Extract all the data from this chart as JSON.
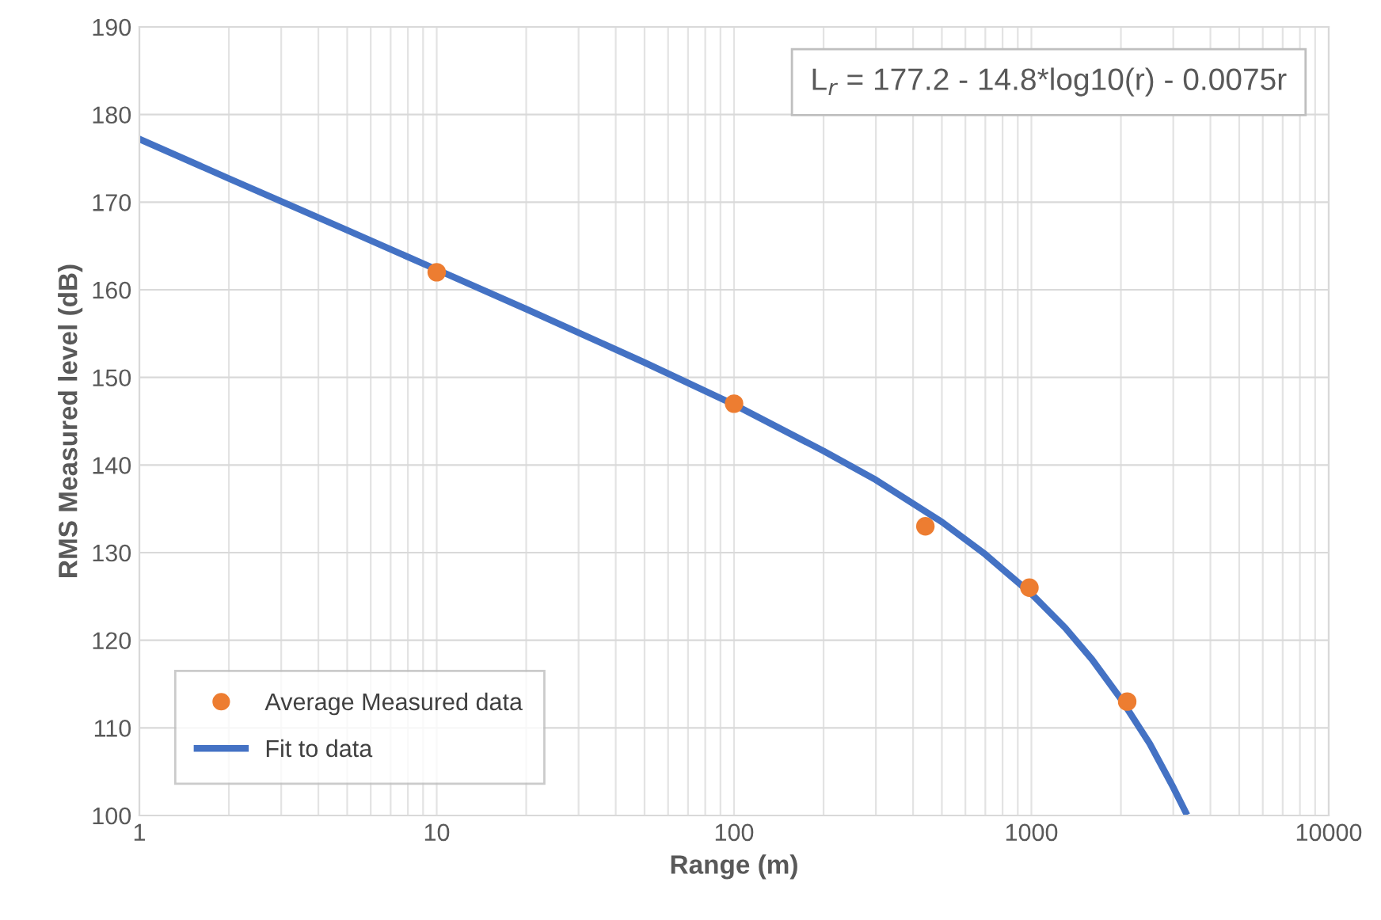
{
  "chart_data": {
    "type": "scatter",
    "xlabel": "Range (m)",
    "ylabel": "RMS Measured level (dB)",
    "log": "x",
    "grid": true,
    "legend": "bottom left",
    "xlim": [
      1,
      10000
    ],
    "xticks": [
      1,
      10,
      100,
      1000,
      10000
    ],
    "ylim": [
      100,
      190
    ],
    "yticks": [
      100,
      110,
      120,
      130,
      140,
      150,
      160,
      170,
      180,
      190
    ],
    "annotations": [
      "L$_{r}$ = 177.2 - 14.8*log10(r) - 0.0075r"
    ],
    "series": [
      {
        "name": "Average Measured data",
        "marker": "circle",
        "color": "#ed7d31",
        "x": [
          10,
          100,
          440,
          985,
          2100
        ],
        "values": [
          162,
          147,
          133,
          126,
          113
        ]
      },
      {
        "name": "Fit to data",
        "type": "line",
        "line_style": "solid",
        "color": "#4472c4",
        "x": [
          1,
          2,
          5,
          10,
          20,
          50,
          100,
          200,
          300,
          500,
          700,
          1000,
          1300,
          1600,
          2000,
          2500,
          3000,
          3300
        ],
        "values": [
          177.2,
          172.7,
          166.8,
          162.3,
          157.8,
          151.7,
          146.9,
          141.6,
          138.3,
          133.5,
          129.8,
          125.3,
          121.4,
          117.8,
          113.3,
          108.2,
          103.2,
          100.4
        ]
      }
    ]
  }
}
